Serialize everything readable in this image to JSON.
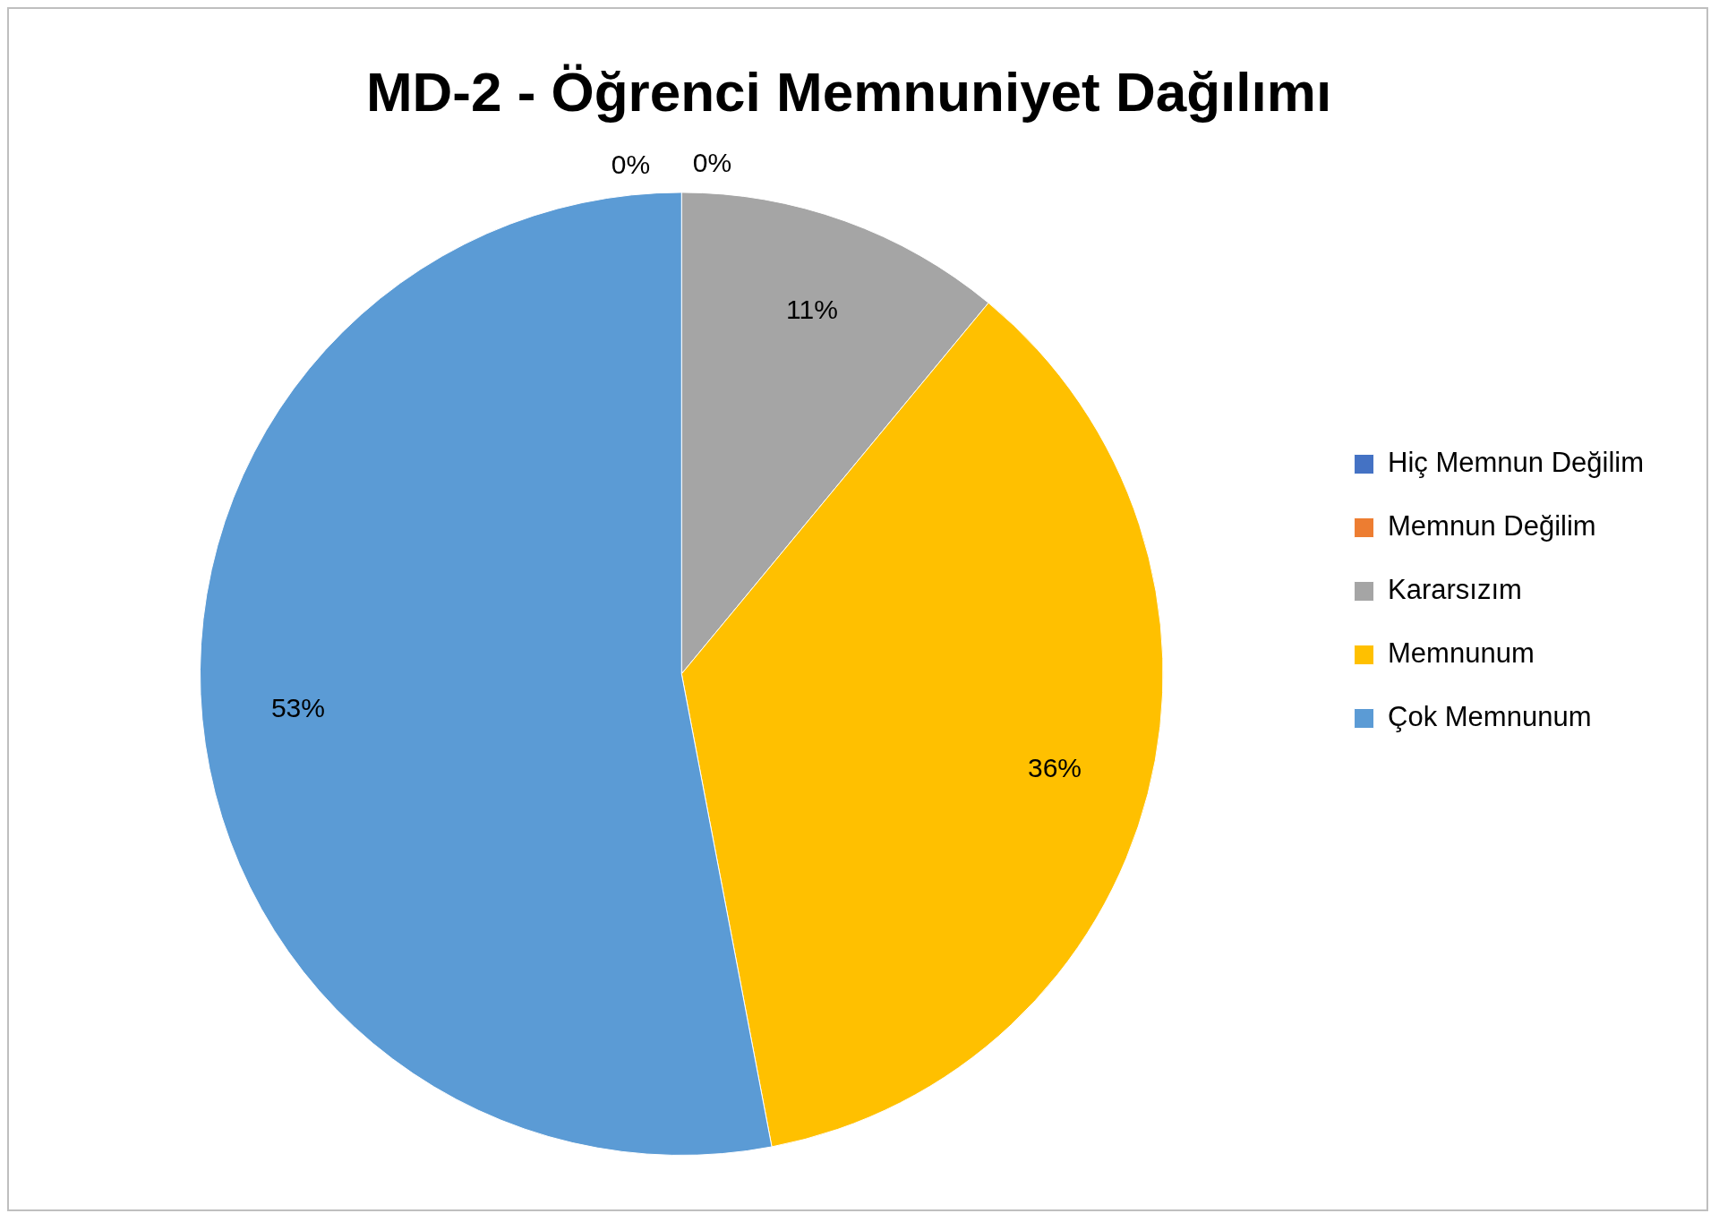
{
  "chart_data": {
    "type": "pie",
    "title": "MD-2 - Öğrenci Memnuniyet Dağılımı",
    "categories": [
      "Hiç Memnun Değilim",
      "Memnun Değilim",
      "Kararsızım",
      "Memnunum",
      "Çok Memnunum"
    ],
    "values": [
      0,
      0,
      11,
      36,
      53
    ],
    "colors": [
      "#4472c4",
      "#ed7d31",
      "#a5a5a5",
      "#ffc000",
      "#5b9bd5"
    ],
    "value_labels": [
      "0%",
      "0%",
      "11%",
      "36%",
      "53%"
    ],
    "legend": "right"
  }
}
